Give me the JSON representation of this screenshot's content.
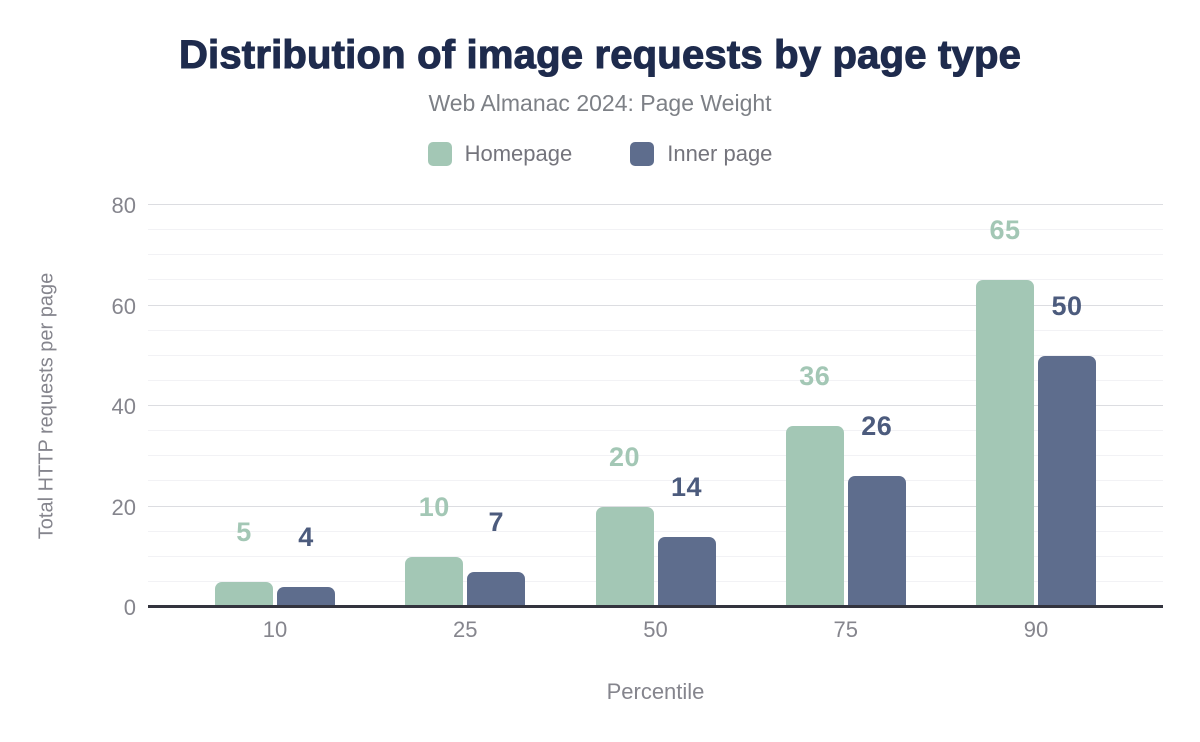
{
  "header": {
    "title": "Distribution of image requests by page type",
    "subtitle": "Web Almanac 2024: Page Weight"
  },
  "legend": [
    {
      "label": "Homepage",
      "color": "#a3c7b5"
    },
    {
      "label": "Inner page",
      "color": "#5e6d8d"
    }
  ],
  "chart_data": {
    "type": "bar",
    "title": "Distribution of image requests by page type",
    "subtitle": "Web Almanac 2024: Page Weight",
    "xlabel": "Percentile",
    "ylabel": "Total HTTP requests per page",
    "categories": [
      "10",
      "25",
      "50",
      "75",
      "90"
    ],
    "series": [
      {
        "name": "Homepage",
        "color": "#a3c7b5",
        "label_color": "#a3c7b5",
        "values": [
          5,
          10,
          20,
          36,
          65
        ]
      },
      {
        "name": "Inner page",
        "color": "#5e6d8d",
        "label_color": "#4c5b7d",
        "values": [
          4,
          7,
          14,
          26,
          50
        ]
      }
    ],
    "ylim": [
      0,
      80
    ],
    "yticks": [
      0,
      20,
      40,
      60,
      80
    ],
    "minor_grid_step": 5,
    "grid": "on",
    "legend_position": "top",
    "colors": {
      "title": "#1e2b4d",
      "subtitle": "#7d8086",
      "tick_labels": "#85858d",
      "axis_line": "#33343e",
      "major_grid": "#dcdde1",
      "minor_grid": "#f2f2f5",
      "background": "#ffffff"
    }
  }
}
